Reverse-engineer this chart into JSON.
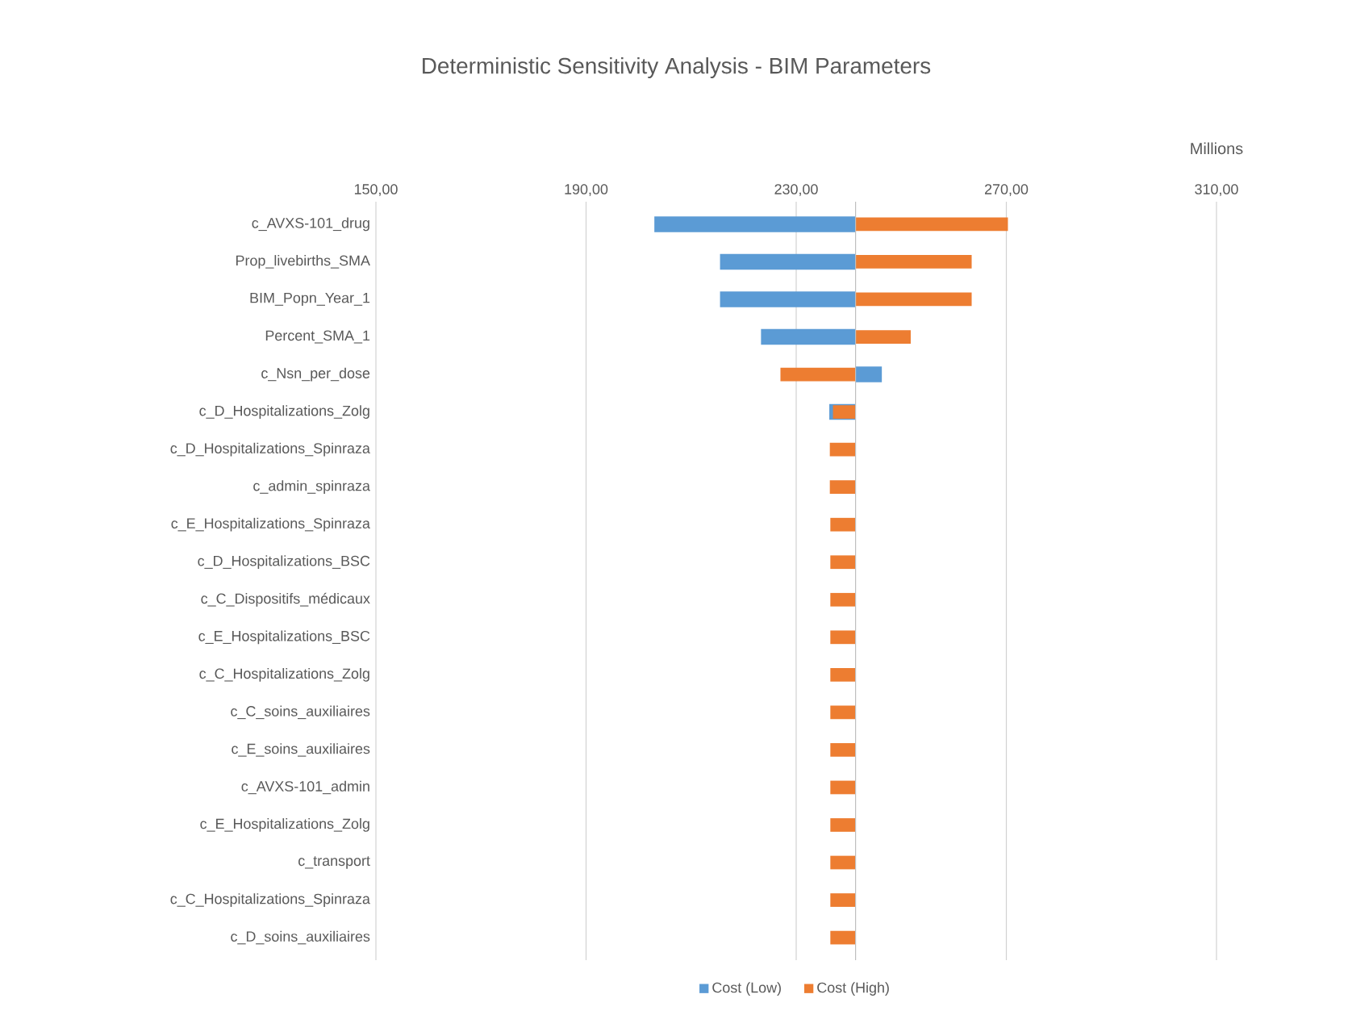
{
  "chart_data": {
    "type": "bar",
    "orientation": "horizontal",
    "title": "Deterministic Sensitivity Analysis - BIM Parameters",
    "xlabel": "Millions",
    "categories": [
      "c_AVXS-101_drug",
      "Prop_livebirths_SMA",
      "BIM_Popn_Year_1",
      "Percent_SMA_1",
      "c_Nsn_per_dose",
      "c_D_Hospitalizations_Zolg",
      "c_D_Hospitalizations_Spinraza",
      "c_admin_spinraza",
      "c_E_Hospitalizations_Spinraza",
      "c_D_Hospitalizations_BSC",
      "c_C_Dispositifs_médicaux",
      "c_E_Hospitalizations_BSC",
      "c_C_Hospitalizations_Zolg",
      "c_C_soins_auxiliaires",
      "c_E_soins_auxiliaires",
      "c_AVXS-101_admin",
      "c_E_Hospitalizations_Zolg",
      "c_transport",
      "c_C_Hospitalizations_Spinraza",
      "c_D_soins_auxiliaires"
    ],
    "series": [
      {
        "name": "Cost (Low)",
        "color": "#5b9bd5",
        "base": [
          241.3,
          241.3,
          241.3,
          241.3,
          241.3,
          241.3,
          null,
          null,
          null,
          null,
          null,
          null,
          null,
          null,
          null,
          null,
          null,
          null,
          null,
          null
        ],
        "values": [
          -38.3,
          -25.8,
          -25.8,
          -18.0,
          5.0,
          -5.0,
          null,
          null,
          null,
          null,
          null,
          null,
          null,
          null,
          null,
          null,
          null,
          null,
          null,
          null
        ]
      },
      {
        "name": "Cost (High)",
        "color": "#ed7d31",
        "base": [
          241.3,
          241.3,
          241.3,
          241.3,
          241.3,
          241.3,
          241.3,
          241.3,
          241.3,
          241.3,
          241.3,
          241.3,
          241.3,
          241.3,
          241.3,
          241.3,
          241.3,
          241.3,
          241.3,
          241.3
        ],
        "values": [
          29.0,
          22.1,
          22.1,
          10.5,
          -14.3,
          -4.3,
          -4.9,
          -4.9,
          -4.8,
          -4.8,
          -4.8,
          -4.8,
          -4.8,
          -4.8,
          -4.8,
          -4.8,
          -4.8,
          -4.8,
          -4.8,
          -4.8
        ]
      }
    ],
    "ref_lines": [
      {
        "axis": "x",
        "value": 241.3,
        "color": "#bfbfbf"
      }
    ],
    "xlim": [
      150,
      310
    ],
    "xticks": [
      {
        "value": 150,
        "label": "150,00"
      },
      {
        "value": 190,
        "label": "190,00"
      },
      {
        "value": 230,
        "label": "230,00"
      },
      {
        "value": 270,
        "label": "270,00"
      },
      {
        "value": 310,
        "label": "310,00"
      }
    ],
    "grid": "x",
    "legend": "bottom"
  }
}
